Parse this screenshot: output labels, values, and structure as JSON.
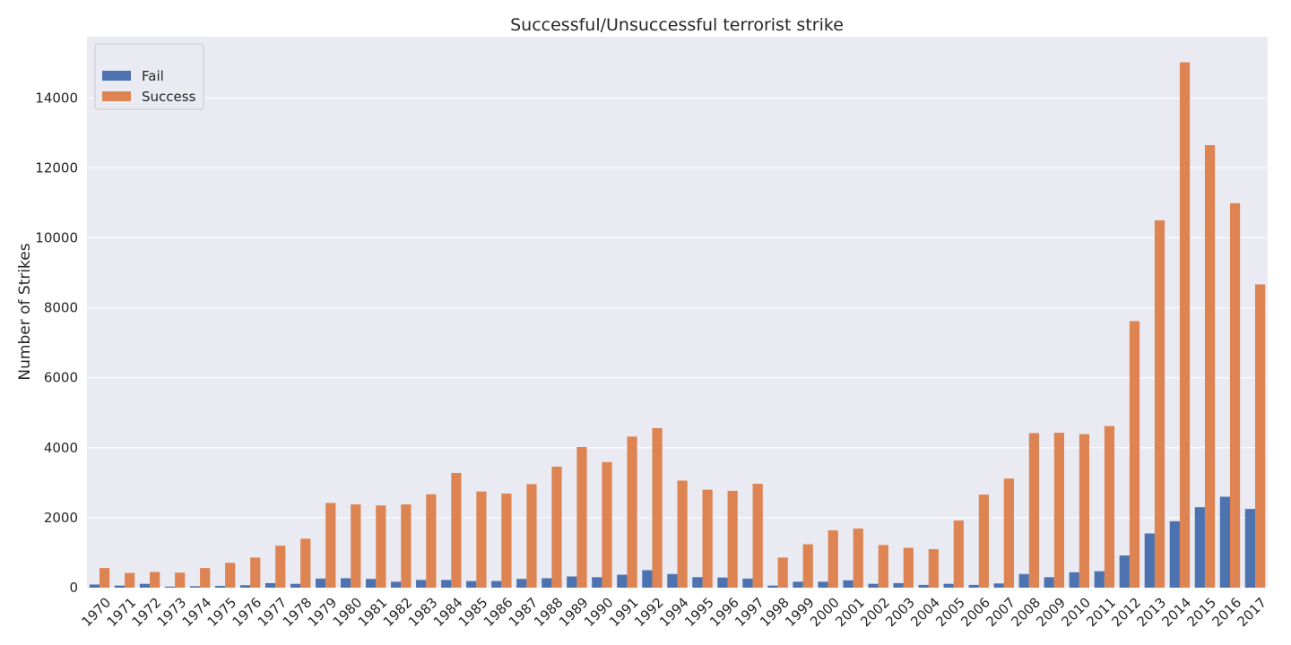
{
  "chart_data": {
    "type": "bar",
    "title": "Successful/Unsuccessful terrorist strike",
    "xlabel": "",
    "ylabel": "Number of Strikes",
    "ylim": [
      0,
      15750
    ],
    "yticks": [
      0,
      2000,
      4000,
      6000,
      8000,
      10000,
      12000,
      14000
    ],
    "grid": true,
    "legend_position": "top-left",
    "categories": [
      "1970",
      "1971",
      "1972",
      "1973",
      "1974",
      "1975",
      "1976",
      "1977",
      "1978",
      "1979",
      "1980",
      "1981",
      "1982",
      "1983",
      "1984",
      "1985",
      "1986",
      "1987",
      "1988",
      "1989",
      "1990",
      "1991",
      "1992",
      "1994",
      "1995",
      "1996",
      "1997",
      "1998",
      "1999",
      "2000",
      "2001",
      "2002",
      "2003",
      "2004",
      "2005",
      "2006",
      "2007",
      "2008",
      "2009",
      "2010",
      "2011",
      "2012",
      "2013",
      "2014",
      "2015",
      "2016",
      "2017"
    ],
    "series": [
      {
        "name": "Fail",
        "color": "#4c72b0",
        "values": [
          90,
          60,
          110,
          30,
          40,
          50,
          70,
          130,
          110,
          260,
          270,
          250,
          170,
          220,
          220,
          190,
          190,
          250,
          270,
          320,
          300,
          370,
          500,
          390,
          300,
          290,
          260,
          60,
          170,
          170,
          210,
          110,
          130,
          80,
          110,
          80,
          120,
          390,
          300,
          440,
          470,
          920,
          1550,
          1900,
          2300,
          2600,
          2250
        ]
      },
      {
        "name": "Success",
        "color": "#dd8452",
        "values": [
          560,
          420,
          450,
          430,
          560,
          710,
          860,
          1200,
          1400,
          2420,
          2380,
          2350,
          2380,
          2670,
          3280,
          2750,
          2690,
          2960,
          3460,
          4020,
          3590,
          4320,
          4560,
          3060,
          2800,
          2770,
          2970,
          860,
          1240,
          1640,
          1690,
          1220,
          1140,
          1100,
          1920,
          2660,
          3120,
          4420,
          4430,
          4390,
          4620,
          7620,
          10500,
          15020,
          12650,
          10990,
          8670
        ]
      }
    ]
  }
}
